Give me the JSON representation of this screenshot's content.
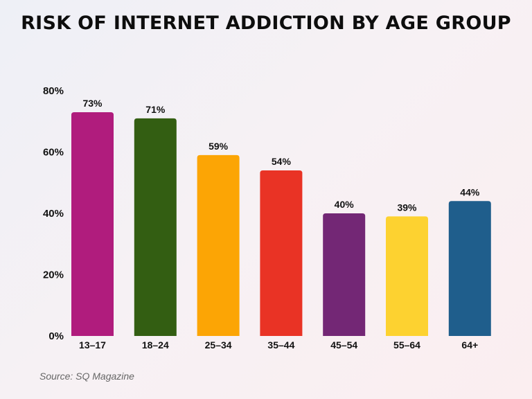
{
  "chart_data": {
    "type": "bar",
    "title": "RISK OF INTERNET ADDICTION BY AGE GROUP",
    "categories": [
      "13–17",
      "18–24",
      "25–34",
      "35–44",
      "45–54",
      "55–64",
      "64+"
    ],
    "values": [
      73,
      71,
      59,
      54,
      40,
      39,
      44
    ],
    "data_labels": [
      "73%",
      "71%",
      "59%",
      "54%",
      "40%",
      "39%",
      "44%"
    ],
    "colors": [
      "#B01C7D",
      "#335E12",
      "#FCA505",
      "#E93325",
      "#732775",
      "#FDD230",
      "#1F5E8C"
    ],
    "ylim": [
      0,
      80
    ],
    "yticks": [
      0,
      20,
      40,
      60,
      80
    ],
    "ytick_labels": [
      "0%",
      "20%",
      "40%",
      "60%",
      "80%"
    ],
    "grid": false,
    "xlabel": "",
    "ylabel": ""
  },
  "source": "Source: SQ Magazine"
}
